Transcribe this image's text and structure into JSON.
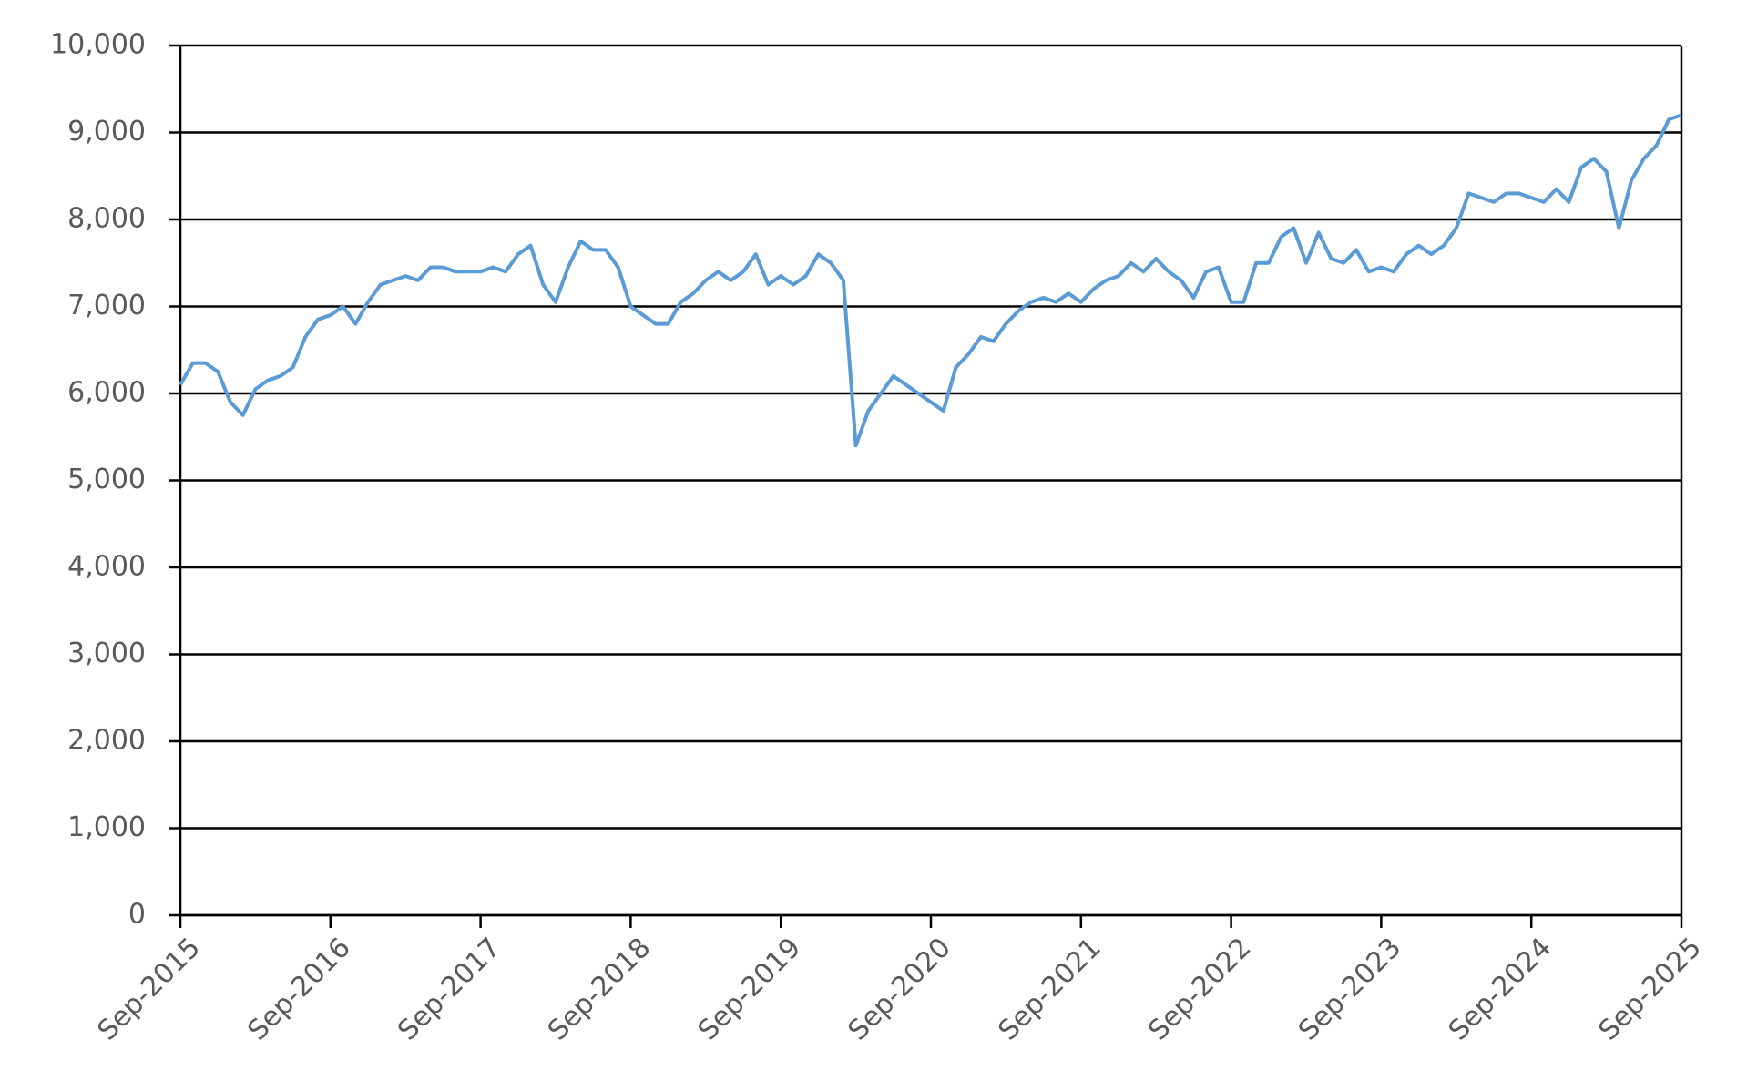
{
  "chart_data": {
    "type": "line",
    "x": [
      "Sep-2015",
      "Oct-2015",
      "Nov-2015",
      "Dec-2015",
      "Jan-2016",
      "Feb-2016",
      "Mar-2016",
      "Apr-2016",
      "May-2016",
      "Jun-2016",
      "Jul-2016",
      "Aug-2016",
      "Sep-2016",
      "Oct-2016",
      "Nov-2016",
      "Dec-2016",
      "Jan-2017",
      "Feb-2017",
      "Mar-2017",
      "Apr-2017",
      "May-2017",
      "Jun-2017",
      "Jul-2017",
      "Aug-2017",
      "Sep-2017",
      "Oct-2017",
      "Nov-2017",
      "Dec-2017",
      "Jan-2018",
      "Feb-2018",
      "Mar-2018",
      "Apr-2018",
      "May-2018",
      "Jun-2018",
      "Jul-2018",
      "Aug-2018",
      "Sep-2018",
      "Oct-2018",
      "Nov-2018",
      "Dec-2018",
      "Jan-2019",
      "Feb-2019",
      "Mar-2019",
      "Apr-2019",
      "May-2019",
      "Jun-2019",
      "Jul-2019",
      "Aug-2019",
      "Sep-2019",
      "Oct-2019",
      "Nov-2019",
      "Dec-2019",
      "Jan-2020",
      "Feb-2020",
      "Mar-2020",
      "Apr-2020",
      "May-2020",
      "Jun-2020",
      "Jul-2020",
      "Aug-2020",
      "Sep-2020",
      "Oct-2020",
      "Nov-2020",
      "Dec-2020",
      "Jan-2021",
      "Feb-2021",
      "Mar-2021",
      "Apr-2021",
      "May-2021",
      "Jun-2021",
      "Jul-2021",
      "Aug-2021",
      "Sep-2021",
      "Oct-2021",
      "Nov-2021",
      "Dec-2021",
      "Jan-2022",
      "Feb-2022",
      "Mar-2022",
      "Apr-2022",
      "May-2022",
      "Jun-2022",
      "Jul-2022",
      "Aug-2022",
      "Sep-2022",
      "Oct-2022",
      "Nov-2022",
      "Dec-2022",
      "Jan-2023",
      "Feb-2023",
      "Mar-2023",
      "Apr-2023",
      "May-2023",
      "Jun-2023",
      "Jul-2023",
      "Aug-2023",
      "Sep-2023",
      "Oct-2023",
      "Nov-2023",
      "Dec-2023",
      "Jan-2024",
      "Feb-2024",
      "Mar-2024",
      "Apr-2024",
      "May-2024",
      "Jun-2024",
      "Jul-2024",
      "Aug-2024",
      "Sep-2024",
      "Oct-2024",
      "Nov-2024",
      "Dec-2024",
      "Jan-2025",
      "Feb-2025",
      "Mar-2025",
      "Apr-2025",
      "May-2025",
      "Jun-2025",
      "Jul-2025",
      "Aug-2025",
      "Sep-2025"
    ],
    "series": [
      {
        "color": "#5b9bd5",
        "values": [
          6100,
          6350,
          6350,
          6250,
          5900,
          5750,
          6050,
          6150,
          6200,
          6300,
          6650,
          6850,
          6900,
          7000,
          6800,
          7050,
          7250,
          7300,
          7350,
          7300,
          7450,
          7450,
          7400,
          7400,
          7400,
          7450,
          7400,
          7600,
          7700,
          7250,
          7050,
          7450,
          7750,
          7650,
          7650,
          7450,
          7000,
          6900,
          6800,
          6800,
          7050,
          7150,
          7300,
          7400,
          7300,
          7400,
          7600,
          7250,
          7350,
          7250,
          7350,
          7600,
          7500,
          7300,
          5400,
          5800,
          6000,
          6200,
          6100,
          6000,
          5900,
          5800,
          6300,
          6450,
          6650,
          6600,
          6800,
          6950,
          7050,
          7100,
          7050,
          7150,
          7050,
          7200,
          7300,
          7350,
          7500,
          7400,
          7550,
          7400,
          7300,
          7100,
          7400,
          7450,
          7050,
          7050,
          7500,
          7500,
          7800,
          7900,
          7500,
          7850,
          7550,
          7500,
          7650,
          7400,
          7450,
          7400,
          7600,
          7700,
          7600,
          7700,
          7900,
          8300,
          8250,
          8200,
          8300,
          8300,
          8250,
          8200,
          8350,
          8200,
          8600,
          8700,
          8550,
          7900,
          8450,
          8700,
          8850,
          9150,
          9200
        ]
      }
    ],
    "xticks": [
      "Sep-2015",
      "Sep-2016",
      "Sep-2017",
      "Sep-2018",
      "Sep-2019",
      "Sep-2020",
      "Sep-2021",
      "Sep-2022",
      "Sep-2023",
      "Sep-2024",
      "Sep-2025"
    ],
    "ylim": [
      0,
      10000
    ],
    "yticks": [
      0,
      {
        "value": 1000,
        "label": "1,000"
      },
      {
        "value": 2000,
        "label": "2,000"
      },
      {
        "value": 3000,
        "label": "3,000"
      },
      {
        "value": 4000,
        "label": "4,000"
      },
      {
        "value": 5000,
        "label": "5,000"
      },
      {
        "value": 6000,
        "label": "6,000"
      },
      {
        "value": 7000,
        "label": "7,000"
      },
      {
        "value": 8000,
        "label": "8,000"
      },
      {
        "value": 9000,
        "label": "9,000"
      },
      {
        "value": 10000,
        "label": "10,000"
      }
    ],
    "grid": true
  }
}
